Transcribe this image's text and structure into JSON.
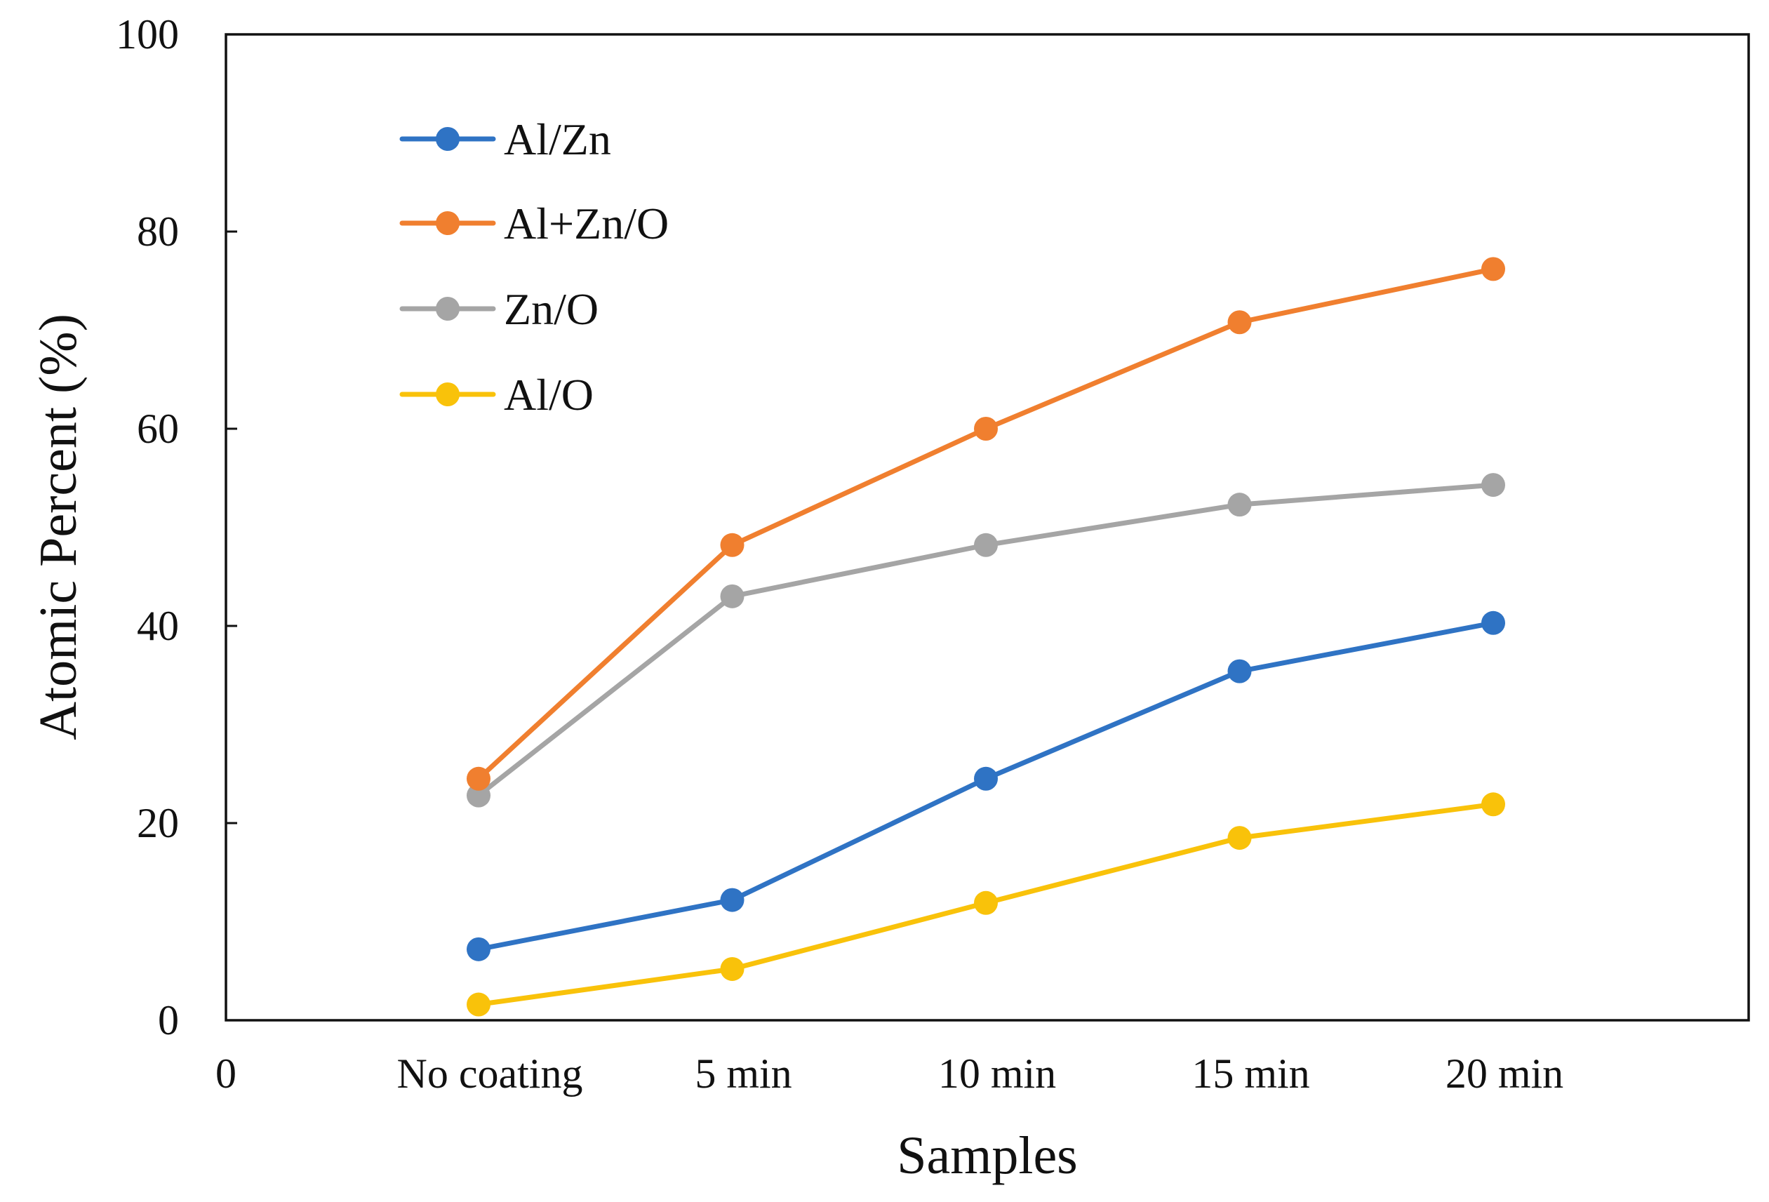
{
  "chart_data": {
    "type": "line",
    "title": "",
    "xlabel": "Samples",
    "ylabel": "Atomic Percent (%)",
    "categories": [
      "No coating",
      "5 min",
      "10 min",
      "15 min",
      "20 min"
    ],
    "x_origin_label": "0",
    "ylim": [
      0,
      100
    ],
    "yticks": [
      0,
      20,
      40,
      60,
      80,
      100
    ],
    "grid": false,
    "legend_position": "top-left",
    "series": [
      {
        "name": "Al/Zn",
        "color": "#2F73C4",
        "values": [
          7.2,
          12.2,
          24.5,
          35.4,
          40.3
        ]
      },
      {
        "name": "Al+Zn/O",
        "color": "#F07F2F",
        "values": [
          24.5,
          48.2,
          60.0,
          70.8,
          76.2
        ]
      },
      {
        "name": "Zn/O",
        "color": "#A5A5A5",
        "values": [
          22.8,
          43.0,
          48.2,
          52.3,
          54.3
        ]
      },
      {
        "name": "Al/O",
        "color": "#F9C20A",
        "values": [
          1.6,
          5.2,
          11.9,
          18.5,
          21.9
        ]
      }
    ]
  }
}
